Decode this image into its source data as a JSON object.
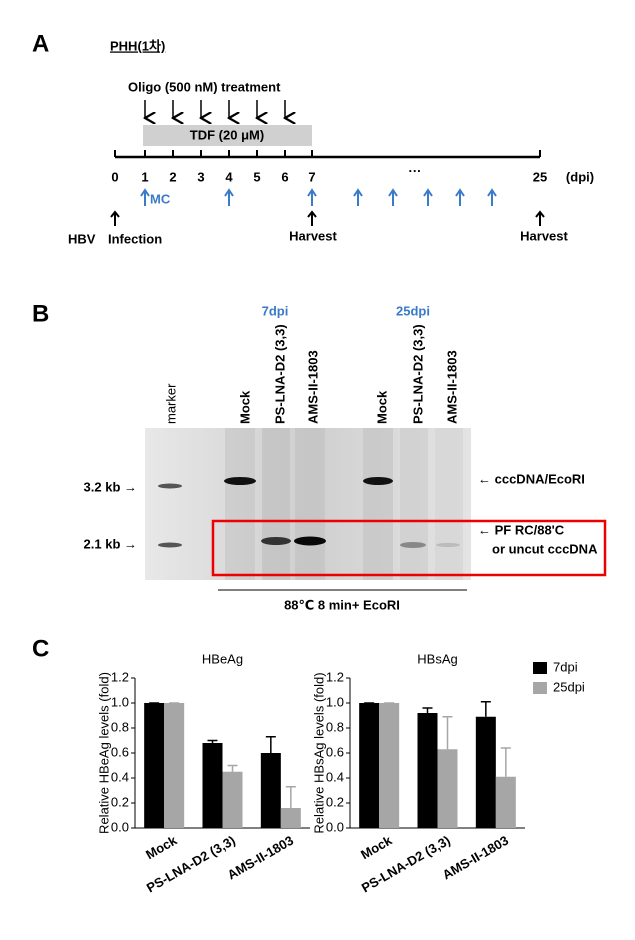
{
  "panel_a": {
    "label": "A",
    "subtitle": "PHH(1차)",
    "treatment": "Oligo (500 nM) treatment",
    "drug": "TDF (20 μM)",
    "timeline": [
      "0",
      "1",
      "2",
      "3",
      "4",
      "5",
      "6",
      "7",
      "···",
      "25"
    ],
    "unit": "(dpi)",
    "mc": "MC",
    "hbv": "HBV",
    "infection": "Infection",
    "harvest": [
      "Harvest",
      "Harvest"
    ]
  },
  "panel_b": {
    "label": "B",
    "groups": [
      "7dpi",
      "25dpi"
    ],
    "lanes": [
      "marker",
      "Mock",
      "PS-LNA-D2 (3,3)",
      "AMS-II-1803",
      "Mock",
      "PS-LNA-D2 (3,3)",
      "AMS-II-1803"
    ],
    "markers": [
      "3.2 kb →",
      "2.1 kb →"
    ],
    "bands": [
      "← cccDNA/EcoRI",
      "← PF RC/88'C",
      "or uncut cccDNA"
    ],
    "condition": "88℃ 8 min+ EcoRI"
  },
  "panel_c": {
    "label": "C"
  },
  "chart_data": [
    {
      "type": "bar",
      "title": "HBeAg",
      "y_label": "Relative HBeAg levels (fold)",
      "categories": [
        "Mock",
        "PS-LNA-D2 (3,3)",
        "AMS-II-1803"
      ],
      "series": [
        {
          "name": "7dpi",
          "color": "#000000",
          "values": [
            1.0,
            0.68,
            0.6
          ],
          "errors": [
            0,
            0.02,
            0.13
          ]
        },
        {
          "name": "25dpi",
          "color": "#a6a6a6",
          "values": [
            1.0,
            0.45,
            0.16
          ],
          "errors": [
            0,
            0.05,
            0.17
          ]
        }
      ],
      "ylim": [
        0,
        1.2
      ],
      "yticks": [
        {
          "value": 0,
          "label": "0.0"
        },
        0.2,
        0.4,
        0.6,
        0.8,
        {
          "value": 1,
          "label": "1.0"
        },
        1.2
      ]
    },
    {
      "type": "bar",
      "title": "HBsAg",
      "y_label": "Relative HBsAg levels (fold)",
      "categories": [
        "Mock",
        "PS-LNA-D2 (3,3)",
        "AMS-II-1803"
      ],
      "series": [
        {
          "name": "7dpi",
          "color": "#000000",
          "values": [
            1.0,
            0.92,
            0.89
          ],
          "errors": [
            0,
            0.04,
            0.12
          ]
        },
        {
          "name": "25dpi",
          "color": "#a6a6a6",
          "values": [
            1.0,
            0.63,
            0.41
          ],
          "errors": [
            0,
            0.26,
            0.23
          ]
        }
      ],
      "ylim": [
        0,
        1.2
      ],
      "yticks": [
        {
          "value": 0,
          "label": "0.0"
        },
        0.2,
        0.4,
        0.6,
        0.8,
        {
          "value": 1,
          "label": "1.0"
        },
        1.2
      ],
      "legend": "top-right"
    }
  ]
}
